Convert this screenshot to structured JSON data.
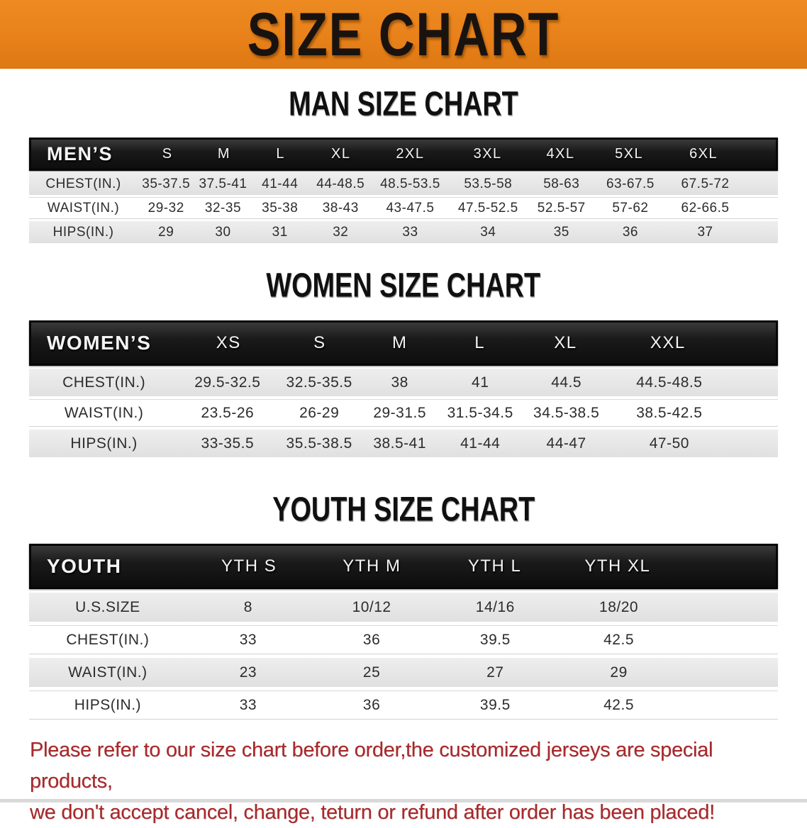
{
  "banner": {
    "title": "SIZE CHART"
  },
  "colors": {
    "banner_bg": "#E8811A",
    "header_bar_bg": "#141414",
    "stripe_row_bg": "#E6E6E6",
    "disclaimer_red": "#A8292B"
  },
  "sections": [
    {
      "heading": "MAN SIZE CHART",
      "table": {
        "header": [
          "MEN’S",
          "S",
          "M",
          "L",
          "XL",
          "2XL",
          "3XL",
          "4XL",
          "5XL",
          "6XL"
        ],
        "rows": [
          [
            "CHEST(IN.)",
            "35-37.5",
            "37.5-41",
            "41-44",
            "44-48.5",
            "48.5-53.5",
            "53.5-58",
            "58-63",
            "63-67.5",
            "67.5-72"
          ],
          [
            "WAIST(IN.)",
            "29-32",
            "32-35",
            "35-38",
            "38-43",
            "43-47.5",
            "47.5-52.5",
            "52.5-57",
            "57-62",
            "62-66.5"
          ],
          [
            "HIPS(IN.)",
            "29",
            "30",
            "31",
            "32",
            "33",
            "34",
            "35",
            "36",
            "37"
          ]
        ]
      }
    },
    {
      "heading": "WOMEN SIZE CHART",
      "table": {
        "header": [
          "WOMEN’S",
          "XS",
          "S",
          "M",
          "L",
          "XL",
          "XXL"
        ],
        "rows": [
          [
            "CHEST(IN.)",
            "29.5-32.5",
            "32.5-35.5",
            "38",
            "41",
            "44.5",
            "44.5-48.5"
          ],
          [
            "WAIST(IN.)",
            "23.5-26",
            "26-29",
            "29-31.5",
            "31.5-34.5",
            "34.5-38.5",
            "38.5-42.5"
          ],
          [
            "HIPS(IN.)",
            "33-35.5",
            "35.5-38.5",
            "38.5-41",
            "41-44",
            "44-47",
            "47-50"
          ]
        ]
      }
    },
    {
      "heading": "YOUTH SIZE CHART",
      "table": {
        "header": [
          "YOUTH",
          "YTH S",
          "YTH M",
          "YTH L",
          "YTH XL"
        ],
        "rows": [
          [
            "U.S.SIZE",
            "8",
            "10/12",
            "14/16",
            "18/20"
          ],
          [
            "CHEST(IN.)",
            "33",
            "36",
            "39.5",
            "42.5"
          ],
          [
            "WAIST(IN.)",
            "23",
            "25",
            "27",
            "29"
          ],
          [
            "HIPS(IN.)",
            "33",
            "36",
            "39.5",
            "42.5"
          ]
        ]
      }
    }
  ],
  "disclaimer": {
    "line1": "Please refer to our size chart before order,the customized jerseys are special products,",
    "line2": "we don't accept cancel, change, teturn or refund after order has been placed!"
  }
}
